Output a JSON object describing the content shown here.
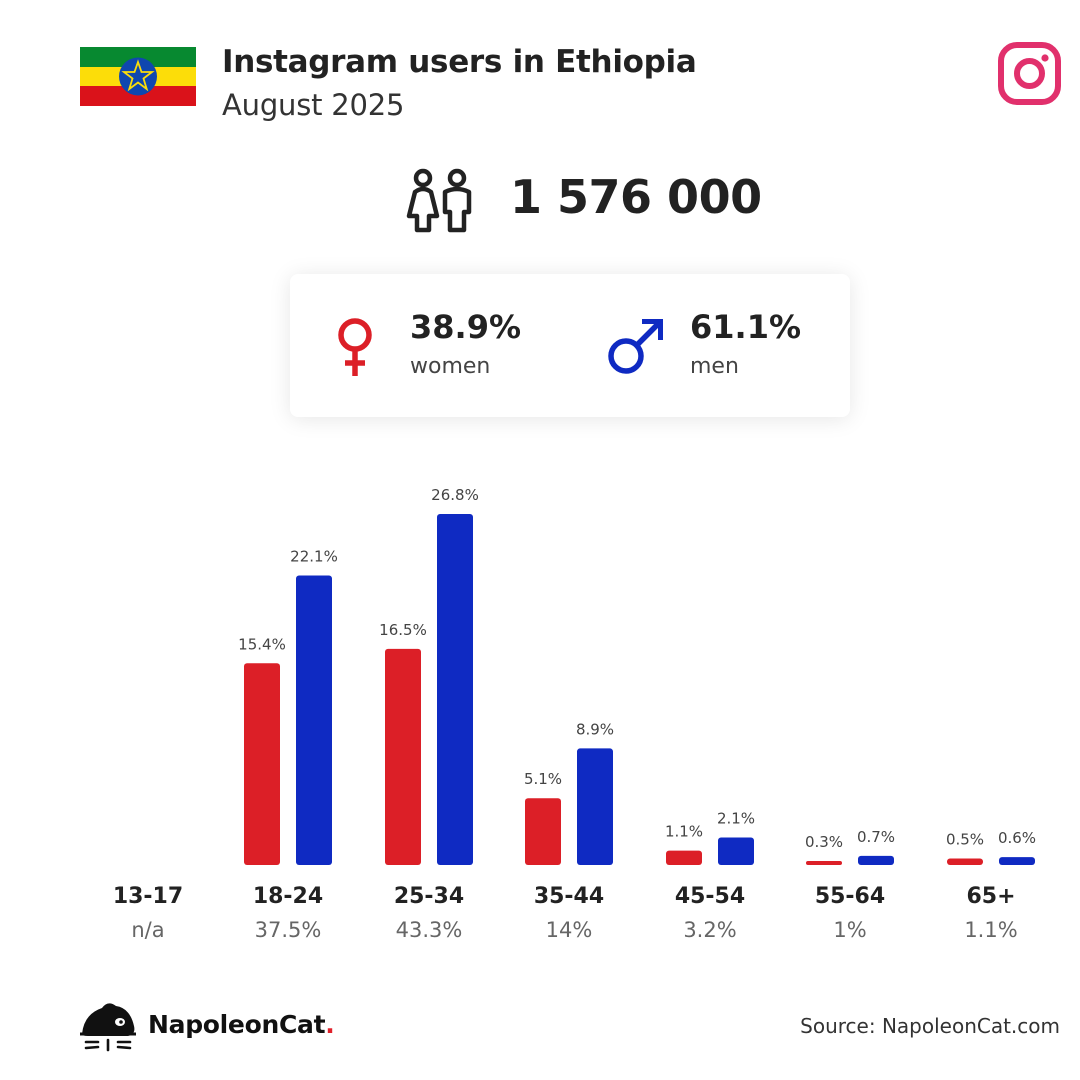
{
  "header": {
    "title": "Instagram users in Ethiopia",
    "subtitle": "August 2025",
    "flag_icon": "ethiopia-flag-icon",
    "platform_icon": "instagram-icon"
  },
  "summary": {
    "total_users": "1 576 000",
    "users_icon": "users-icon"
  },
  "gender": {
    "women": {
      "pct": "38.9%",
      "label": "women",
      "icon": "female-symbol-icon"
    },
    "men": {
      "pct": "61.1%",
      "label": "men",
      "icon": "male-symbol-icon"
    }
  },
  "colors": {
    "women": "#dc1f27",
    "men": "#0f2ac2",
    "instagram": "#e1306c",
    "flag_green": "#078930",
    "flag_yellow": "#fcdd09",
    "flag_red": "#da121a",
    "flag_emblem": "#0f47af"
  },
  "chart_data": {
    "type": "bar",
    "categories": [
      "13-17",
      "18-24",
      "25-34",
      "35-44",
      "45-54",
      "55-64",
      "65+"
    ],
    "category_totals": [
      "n/a",
      "37.5%",
      "43.3%",
      "14%",
      "3.2%",
      "1%",
      "1.1%"
    ],
    "series": [
      {
        "key": "women",
        "values": [
          null,
          15.4,
          16.5,
          5.1,
          1.1,
          0.3,
          0.5
        ],
        "labels": [
          "",
          "15.4%",
          "16.5%",
          "5.1%",
          "1.1%",
          "0.3%",
          "0.5%"
        ]
      },
      {
        "key": "men",
        "values": [
          null,
          22.1,
          26.8,
          8.9,
          2.1,
          0.7,
          0.6
        ],
        "labels": [
          "",
          "22.1%",
          "26.8%",
          "8.9%",
          "2.1%",
          "0.7%",
          "0.6%"
        ]
      }
    ],
    "ylim": [
      0,
      26.8
    ],
    "grid": false,
    "legend": "none"
  },
  "footer": {
    "brand": "NapoleonCat",
    "brand_dot": ".",
    "source": "Source: NapoleonCat.com",
    "logo_icon": "napoleoncat-logo-icon"
  }
}
